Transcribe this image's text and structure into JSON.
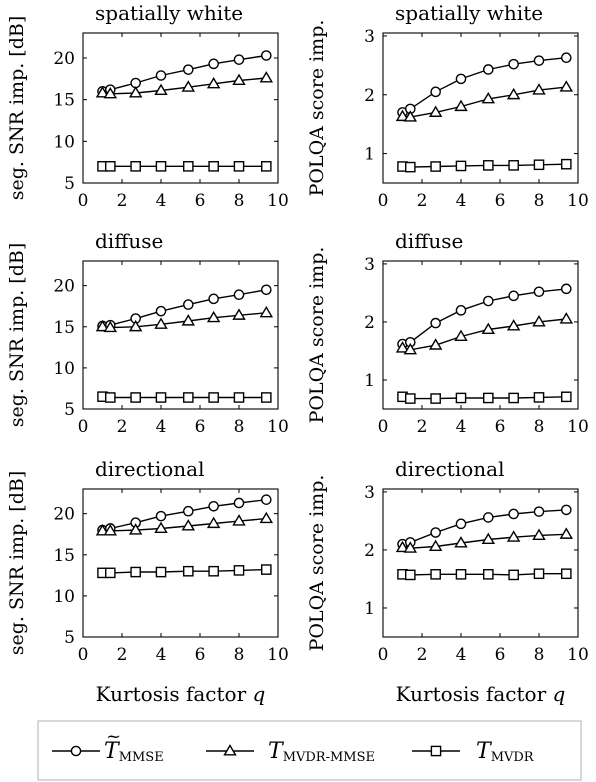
{
  "chart_data": [
    {
      "type": "line",
      "title": "spatially white",
      "ylabel": "seg. SNR imp. [dB]",
      "xlabel": "",
      "xlim": [
        0,
        10
      ],
      "ylim": [
        5,
        23
      ],
      "xticks": [
        0,
        2,
        4,
        6,
        8,
        10
      ],
      "yticks": [
        5,
        10,
        15,
        20
      ],
      "xticklabels": [
        "0",
        "2",
        "4",
        "6",
        "8",
        "10"
      ],
      "yticklabels": [
        "5",
        "10",
        "15",
        "20"
      ],
      "x": [
        1,
        1.4,
        2.7,
        4.0,
        5.4,
        6.7,
        8.0,
        9.4
      ],
      "series": [
        {
          "name": "T~MMSE",
          "values": [
            16.0,
            16.2,
            17.0,
            17.9,
            18.6,
            19.3,
            19.8,
            20.3
          ]
        },
        {
          "name": "T MVDR-MMSE",
          "values": [
            15.8,
            15.7,
            15.8,
            16.1,
            16.5,
            16.9,
            17.3,
            17.6
          ]
        },
        {
          "name": "T MVDR",
          "values": [
            7.0,
            7.0,
            7.0,
            7.0,
            7.0,
            7.0,
            7.0,
            7.0
          ]
        }
      ]
    },
    {
      "type": "line",
      "title": "spatially white",
      "ylabel": "POLQA score imp.",
      "xlabel": "",
      "xlim": [
        0,
        10
      ],
      "ylim": [
        0.5,
        3.05
      ],
      "xticks": [
        0,
        2,
        4,
        6,
        8,
        10
      ],
      "yticks": [
        1,
        2,
        3
      ],
      "xticklabels": [
        "0",
        "2",
        "4",
        "6",
        "8",
        "10"
      ],
      "yticklabels": [
        "1",
        "2",
        "3"
      ],
      "x": [
        1,
        1.4,
        2.7,
        4.0,
        5.4,
        6.7,
        8.0,
        9.4
      ],
      "series": [
        {
          "name": "T~MMSE",
          "values": [
            1.7,
            1.76,
            2.05,
            2.27,
            2.43,
            2.52,
            2.58,
            2.63
          ]
        },
        {
          "name": "T MVDR-MMSE",
          "values": [
            1.63,
            1.62,
            1.7,
            1.8,
            1.93,
            2.0,
            2.08,
            2.13
          ]
        },
        {
          "name": "T MVDR",
          "values": [
            0.78,
            0.77,
            0.78,
            0.79,
            0.8,
            0.8,
            0.81,
            0.82
          ]
        }
      ]
    },
    {
      "type": "line",
      "title": "diffuse",
      "ylabel": "seg. SNR imp. [dB]",
      "xlabel": "",
      "xlim": [
        0,
        10
      ],
      "ylim": [
        5,
        23
      ],
      "xticks": [
        0,
        2,
        4,
        6,
        8,
        10
      ],
      "yticks": [
        5,
        10,
        15,
        20
      ],
      "xticklabels": [
        "0",
        "2",
        "4",
        "6",
        "8",
        "10"
      ],
      "yticklabels": [
        "5",
        "10",
        "15",
        "20"
      ],
      "x": [
        1,
        1.4,
        2.7,
        4.0,
        5.4,
        6.7,
        8.0,
        9.4
      ],
      "series": [
        {
          "name": "T~MMSE",
          "values": [
            15.1,
            15.2,
            16.0,
            16.9,
            17.7,
            18.4,
            18.9,
            19.5
          ]
        },
        {
          "name": "T MVDR-MMSE",
          "values": [
            15.0,
            14.9,
            15.0,
            15.3,
            15.7,
            16.1,
            16.4,
            16.7
          ]
        },
        {
          "name": "T MVDR",
          "values": [
            6.5,
            6.4,
            6.4,
            6.4,
            6.4,
            6.4,
            6.4,
            6.4
          ]
        }
      ]
    },
    {
      "type": "line",
      "title": "diffuse",
      "ylabel": "POLQA score imp.",
      "xlabel": "",
      "xlim": [
        0,
        10
      ],
      "ylim": [
        0.5,
        3.05
      ],
      "xticks": [
        0,
        2,
        4,
        6,
        8,
        10
      ],
      "yticks": [
        1,
        2,
        3
      ],
      "xticklabels": [
        "0",
        "2",
        "4",
        "6",
        "8",
        "10"
      ],
      "yticklabels": [
        "1",
        "2",
        "3"
      ],
      "x": [
        1,
        1.4,
        2.7,
        4.0,
        5.4,
        6.7,
        8.0,
        9.4
      ],
      "series": [
        {
          "name": "T~MMSE",
          "values": [
            1.62,
            1.65,
            1.98,
            2.2,
            2.36,
            2.45,
            2.52,
            2.57
          ]
        },
        {
          "name": "T MVDR-MMSE",
          "values": [
            1.55,
            1.52,
            1.6,
            1.75,
            1.87,
            1.93,
            2.0,
            2.05
          ]
        },
        {
          "name": "T MVDR",
          "values": [
            0.71,
            0.68,
            0.68,
            0.69,
            0.69,
            0.69,
            0.7,
            0.71
          ]
        }
      ]
    },
    {
      "type": "line",
      "title": "directional",
      "ylabel": "seg. SNR imp. [dB]",
      "xlabel": "Kurtosis factor q",
      "xlim": [
        0,
        10
      ],
      "ylim": [
        5,
        23
      ],
      "xticks": [
        0,
        2,
        4,
        6,
        8,
        10
      ],
      "yticks": [
        5,
        10,
        15,
        20
      ],
      "xticklabels": [
        "0",
        "2",
        "4",
        "6",
        "8",
        "10"
      ],
      "yticklabels": [
        "5",
        "10",
        "15",
        "20"
      ],
      "x": [
        1,
        1.4,
        2.7,
        4.0,
        5.4,
        6.7,
        8.0,
        9.4
      ],
      "series": [
        {
          "name": "T~MMSE",
          "values": [
            18.0,
            18.2,
            18.9,
            19.7,
            20.3,
            20.9,
            21.3,
            21.7
          ]
        },
        {
          "name": "T MVDR-MMSE",
          "values": [
            17.9,
            17.9,
            18.0,
            18.2,
            18.5,
            18.8,
            19.1,
            19.4
          ]
        },
        {
          "name": "T MVDR",
          "values": [
            12.8,
            12.8,
            12.9,
            12.9,
            13.0,
            13.0,
            13.1,
            13.2
          ]
        }
      ]
    },
    {
      "type": "line",
      "title": "directional",
      "ylabel": "POLQA score imp.",
      "xlabel": "Kurtosis factor q",
      "xlim": [
        0,
        10
      ],
      "ylim": [
        0.5,
        3.05
      ],
      "xticks": [
        0,
        2,
        4,
        6,
        8,
        10
      ],
      "yticks": [
        1,
        2,
        3
      ],
      "xticklabels": [
        "0",
        "2",
        "4",
        "6",
        "8",
        "10"
      ],
      "yticklabels": [
        "1",
        "2",
        "3"
      ],
      "x": [
        1,
        1.4,
        2.7,
        4.0,
        5.4,
        6.7,
        8.0,
        9.4
      ],
      "series": [
        {
          "name": "T~MMSE",
          "values": [
            2.1,
            2.13,
            2.3,
            2.45,
            2.56,
            2.62,
            2.66,
            2.69
          ]
        },
        {
          "name": "T MVDR-MMSE",
          "values": [
            2.04,
            2.03,
            2.06,
            2.12,
            2.18,
            2.22,
            2.25,
            2.27
          ]
        },
        {
          "name": "T MVDR",
          "values": [
            1.58,
            1.57,
            1.58,
            1.58,
            1.58,
            1.57,
            1.59,
            1.59
          ]
        }
      ]
    }
  ],
  "legend": {
    "placement": "bottom",
    "entries": [
      {
        "marker": "circle",
        "base": "T",
        "sub": "MMSE",
        "tilde": true
      },
      {
        "marker": "triangle",
        "base": "T",
        "sub": "MVDR-MMSE",
        "tilde": false
      },
      {
        "marker": "square",
        "base": "T",
        "sub": "MVDR",
        "tilde": false
      }
    ]
  },
  "colors": {
    "line": "#000000",
    "marker_fill": "#ffffff",
    "legend_border": "#b0b0b0"
  }
}
